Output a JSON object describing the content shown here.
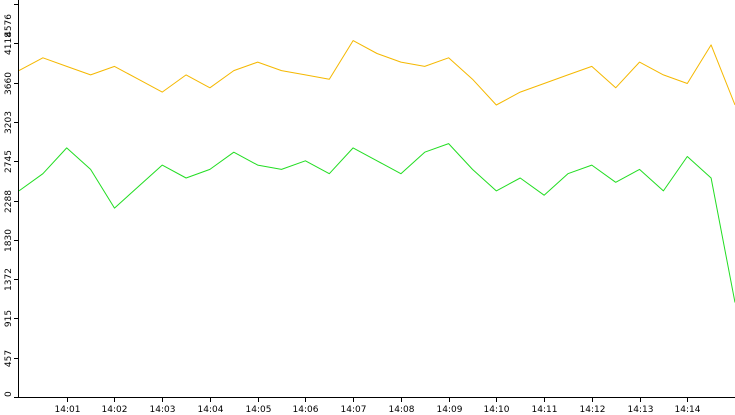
{
  "chart_data": {
    "type": "line",
    "title": "",
    "xlabel": "",
    "ylabel": "",
    "grid": false,
    "legend": "none",
    "ylim": [
      0,
      4576
    ],
    "xlim": [
      "14:00:00",
      "14:15:00"
    ],
    "y_ticks": [
      "0",
      "457",
      "915",
      "1372",
      "1830",
      "2288",
      "2745",
      "3203",
      "3660",
      "4118",
      "4576"
    ],
    "x_ticks": [
      "14:01",
      "14:02",
      "14:03",
      "14:04",
      "14:05",
      "14:06",
      "14:07",
      "14:08",
      "14:09",
      "14:10",
      "14:11",
      "14:12",
      "14:13",
      "14:14"
    ],
    "x_tick_minutes": [
      1,
      2,
      3,
      4,
      5,
      6,
      7,
      8,
      9,
      10,
      11,
      12,
      13,
      14
    ],
    "series": [
      {
        "color": "#f5b800",
        "time": [
          "14:00:00",
          "14:00:30",
          "14:01:00",
          "14:01:30",
          "14:02:00",
          "14:02:30",
          "14:03:00",
          "14:03:30",
          "14:04:00",
          "14:04:30",
          "14:05:00",
          "14:05:30",
          "14:06:00",
          "14:06:30",
          "14:07:00",
          "14:07:30",
          "14:08:00",
          "14:08:30",
          "14:09:00",
          "14:09:30",
          "14:10:00",
          "14:10:30",
          "14:11:00",
          "14:11:30",
          "14:12:00",
          "14:12:30",
          "14:13:00",
          "14:13:30",
          "14:14:00",
          "14:14:30",
          "14:15:00"
        ],
        "values": [
          3800,
          3950,
          3850,
          3750,
          3850,
          3700,
          3550,
          3750,
          3600,
          3800,
          3900,
          3800,
          3750,
          3700,
          4150,
          4000,
          3900,
          3850,
          3950,
          3700,
          3400,
          3550,
          3650,
          3750,
          3850,
          3600,
          3900,
          3750,
          3650,
          4100,
          3400
        ]
      },
      {
        "color": "#22dd22",
        "time": [
          "14:00:00",
          "14:00:30",
          "14:01:00",
          "14:01:30",
          "14:02:00",
          "14:02:30",
          "14:03:00",
          "14:03:30",
          "14:04:00",
          "14:04:30",
          "14:05:00",
          "14:05:30",
          "14:06:00",
          "14:06:30",
          "14:07:00",
          "14:07:30",
          "14:08:00",
          "14:08:30",
          "14:09:00",
          "14:09:30",
          "14:10:00",
          "14:10:30",
          "14:11:00",
          "14:11:30",
          "14:12:00",
          "14:12:30",
          "14:13:00",
          "14:13:30",
          "14:14:00",
          "14:14:30",
          "14:15:00"
        ],
        "values": [
          2400,
          2600,
          2900,
          2650,
          2200,
          2450,
          2700,
          2550,
          2650,
          2850,
          2700,
          2650,
          2750,
          2600,
          2900,
          2750,
          2600,
          2850,
          2950,
          2650,
          2400,
          2550,
          2350,
          2600,
          2700,
          2500,
          2650,
          2400,
          2800,
          2550,
          1100
        ]
      }
    ]
  }
}
